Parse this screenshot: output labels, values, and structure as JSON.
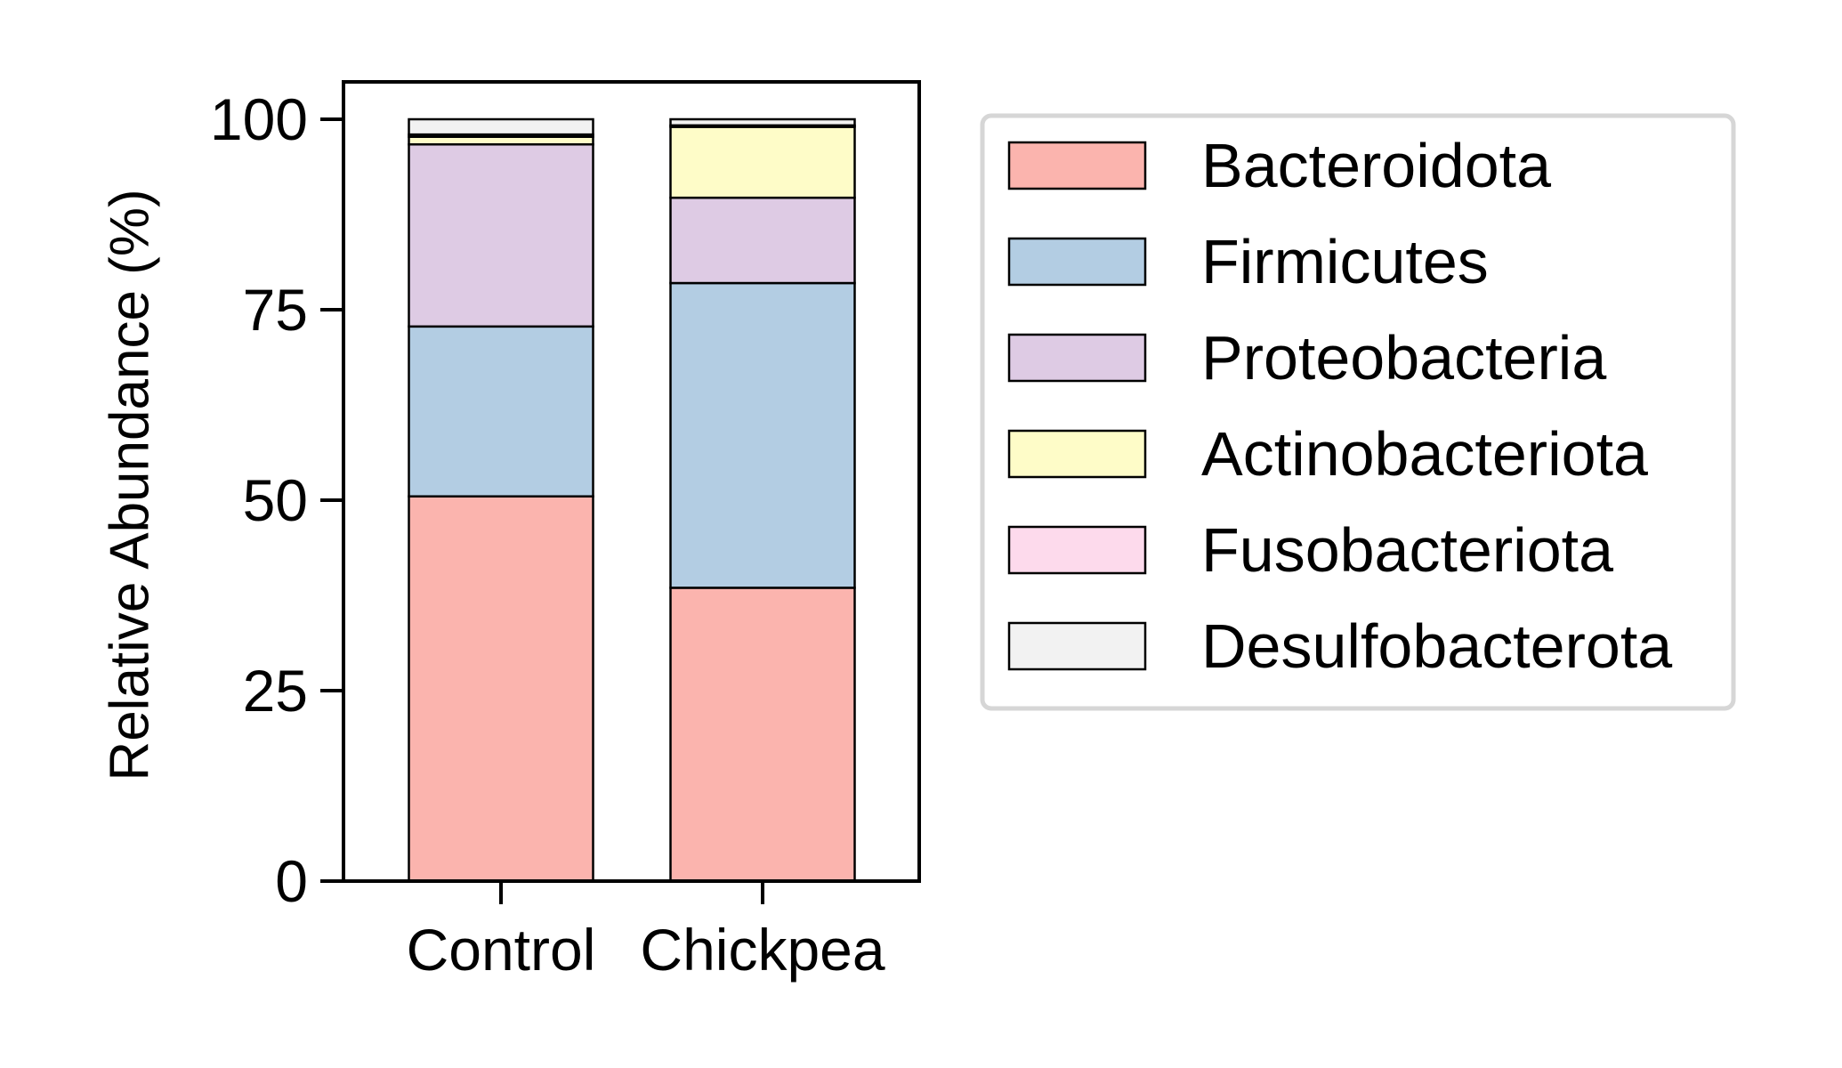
{
  "chart_data": {
    "type": "bar",
    "stacked": true,
    "title": "",
    "xlabel": "",
    "ylabel": "Relative Abundance (%)",
    "ylim": [
      0,
      100
    ],
    "yticks": [
      0,
      25,
      50,
      75,
      100
    ],
    "grid": false,
    "legend_position": "right",
    "categories": [
      "Control",
      "Chickpea"
    ],
    "series": [
      {
        "name": "Bacteroidota",
        "color": "#fbb4ae",
        "values": [
          50.5,
          38.5
        ]
      },
      {
        "name": "Firmicutes",
        "color": "#b3cde3",
        "values": [
          22.3,
          40.0
        ]
      },
      {
        "name": "Proteobacteria",
        "color": "#decbe4",
        "values": [
          23.9,
          11.2
        ]
      },
      {
        "name": "Actinobacteriota",
        "color": "#fefcc8",
        "values": [
          1.0,
          9.3
        ]
      },
      {
        "name": "Fusobacteriota",
        "color": "#fddaec",
        "values": [
          0.3,
          0.2
        ]
      },
      {
        "name": "Desulfobacterota",
        "color": "#f2f2f2",
        "values": [
          2.0,
          0.8
        ]
      }
    ]
  }
}
